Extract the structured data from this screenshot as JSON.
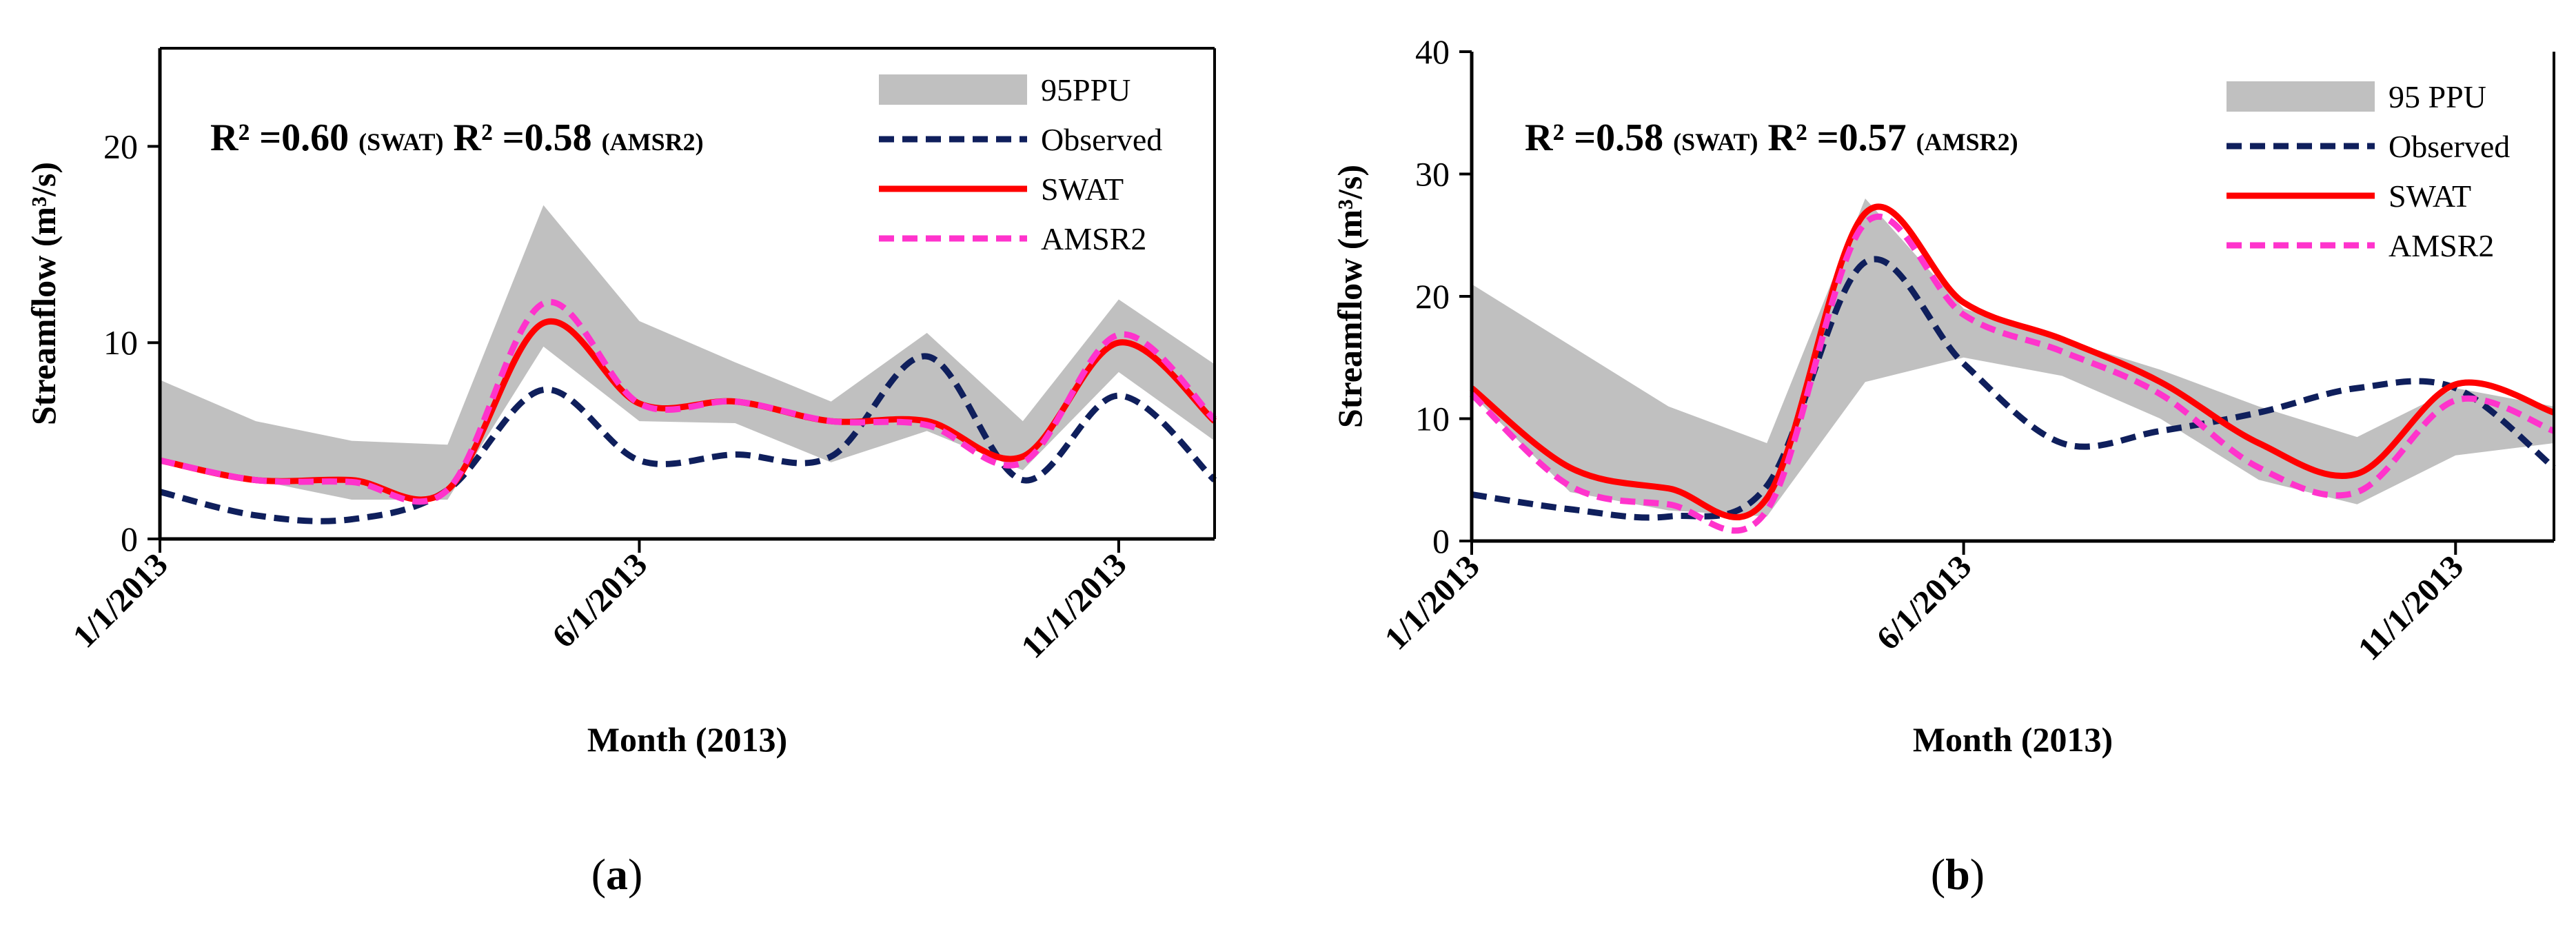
{
  "chart_data": [
    {
      "type": "line",
      "panel": "a",
      "panel_label": "a",
      "xlabel": "Month (2013)",
      "ylabel": "Streamflow (m³/s)",
      "ylim": [
        0,
        25
      ],
      "yticks": [
        0,
        10,
        20
      ],
      "x_tick_labels": [
        "1/1/2013",
        "6/1/2013",
        "11/1/2013"
      ],
      "x_tick_months": [
        0,
        5,
        10
      ],
      "xlim": [
        0,
        11
      ],
      "months": [
        0,
        1,
        2,
        3,
        4,
        5,
        6,
        7,
        8,
        9,
        10,
        11
      ],
      "annotation": {
        "r2_label": "R² =",
        "swat_r2": "0.60",
        "swat_tag": "(SWAT)",
        "amsr2_r2": "0.58",
        "amsr2_tag": "(AMSR2)"
      },
      "band": {
        "name": "95PPU",
        "upper": [
          8.1,
          6.0,
          5.0,
          4.8,
          17.0,
          11.1,
          9.0,
          7.0,
          10.5,
          6.0,
          12.2,
          8.9
        ],
        "lower": [
          4.0,
          3.0,
          2.0,
          2.0,
          9.8,
          6.0,
          5.9,
          3.9,
          5.5,
          3.5,
          8.5,
          5.0
        ]
      },
      "series": [
        {
          "name": "Observed",
          "values": [
            2.4,
            1.2,
            1.0,
            2.5,
            7.6,
            4.0,
            4.3,
            4.2,
            9.3,
            3.0,
            7.3,
            3.0
          ]
        },
        {
          "name": "SWAT",
          "values": [
            4.0,
            3.0,
            3.0,
            2.5,
            11.0,
            6.9,
            7.0,
            6.0,
            6.0,
            4.2,
            10.0,
            6.0
          ]
        },
        {
          "name": "AMSR2",
          "values": [
            4.0,
            3.0,
            2.9,
            2.5,
            12.0,
            6.9,
            7.0,
            6.0,
            5.8,
            3.9,
            10.4,
            6.1
          ]
        }
      ],
      "legend": [
        "95PPU",
        "Observed",
        "SWAT",
        "AMSR2"
      ]
    },
    {
      "type": "line",
      "panel": "b",
      "panel_label": "b",
      "xlabel": "Month (2013)",
      "ylabel": "Streamflow (m³/s)",
      "ylim": [
        0,
        40
      ],
      "yticks": [
        0,
        10,
        20,
        30,
        40
      ],
      "x_tick_labels": [
        "1/1/2013",
        "6/1/2013",
        "11/1/2013"
      ],
      "x_tick_months": [
        0,
        5,
        10
      ],
      "xlim": [
        0,
        11
      ],
      "months": [
        0,
        1,
        2,
        3,
        4,
        5,
        6,
        7,
        8,
        9,
        10,
        11
      ],
      "annotation": {
        "r2_label": "R² =",
        "swat_r2": "0.58",
        "swat_tag": "(SWAT)",
        "amsr2_r2": "0.57",
        "amsr2_tag": "(AMSR2)"
      },
      "band": {
        "name": "95 PPU",
        "upper": [
          21.0,
          16.0,
          11.0,
          8.0,
          28.0,
          19.0,
          16.5,
          14.0,
          11.0,
          8.5,
          12.5,
          11.0
        ],
        "lower": [
          12.0,
          4.0,
          2.5,
          2.0,
          13.0,
          15.0,
          13.5,
          10.0,
          5.0,
          3.0,
          7.0,
          8.0
        ]
      },
      "series": [
        {
          "name": "Observed",
          "values": [
            3.8,
            2.6,
            2.0,
            4.5,
            22.8,
            14.5,
            8.0,
            9.0,
            10.5,
            12.5,
            12.5,
            6.0
          ]
        },
        {
          "name": "SWAT",
          "values": [
            12.5,
            6.0,
            4.3,
            3.5,
            26.8,
            19.5,
            16.5,
            13.0,
            8.0,
            5.5,
            12.8,
            10.5
          ]
        },
        {
          "name": "AMSR2",
          "values": [
            12.0,
            4.5,
            3.0,
            2.5,
            26.0,
            18.5,
            15.5,
            12.0,
            6.0,
            4.0,
            11.5,
            9.0
          ]
        }
      ],
      "legend": [
        "95 PPU",
        "Observed",
        "SWAT",
        "AMSR2"
      ]
    }
  ]
}
